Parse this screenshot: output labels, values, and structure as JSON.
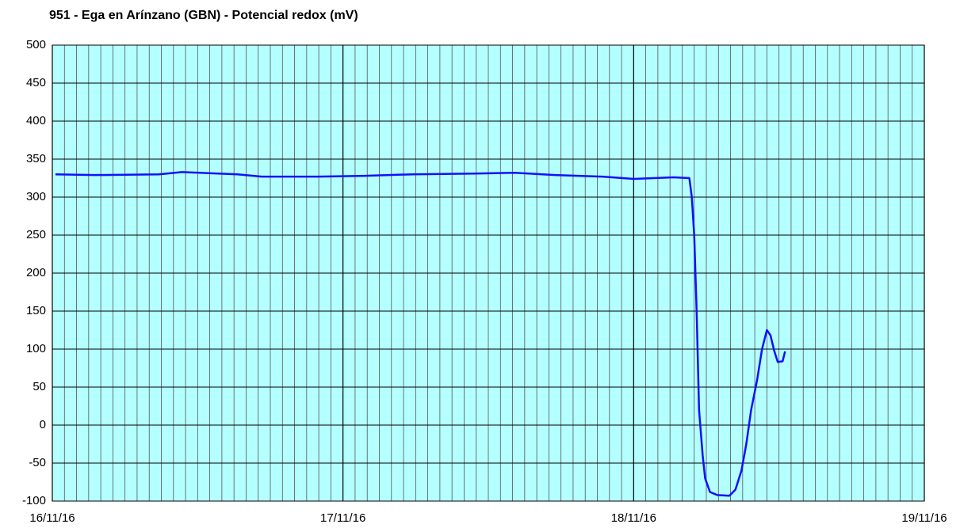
{
  "chart_data": {
    "type": "line",
    "title": "951 - Ega en Arínzano (GBN) - Potencial redox (mV)",
    "x": [
      0.26,
      3.5,
      8.8,
      10.7,
      15.3,
      17.3,
      21.9,
      25.8,
      29.7,
      34.9,
      38.2,
      41.5,
      45.4,
      48.0,
      51.3,
      52.6,
      52.8,
      53.0,
      53.2,
      53.4,
      53.7,
      53.9,
      54.3,
      54.9,
      55.9,
      56.4,
      56.9,
      57.3,
      57.7,
      58.2,
      58.6,
      59.0,
      59.3,
      59.6,
      59.9,
      60.3,
      60.5
    ],
    "series": [
      {
        "name": "Potencial redox",
        "color": "#1010ff",
        "values": [
          330,
          329,
          330,
          333,
          330,
          327,
          327,
          328,
          330,
          331,
          332,
          329,
          327,
          324,
          326,
          325,
          300,
          250,
          150,
          20,
          -40,
          -70,
          -88,
          -92,
          -93,
          -85,
          -60,
          -25,
          20,
          60,
          100,
          125,
          118,
          98,
          83,
          84,
          97
        ]
      }
    ],
    "xlim": [
      0,
      72
    ],
    "xticks": [
      {
        "value": 0,
        "label": "16/11/16"
      },
      {
        "value": 24,
        "label": "17/11/16"
      },
      {
        "value": 48,
        "label": "18/11/16"
      },
      {
        "value": 72,
        "label": "19/11/16"
      }
    ],
    "minor_xticks": [
      1,
      2,
      3,
      4,
      5,
      6,
      7,
      8,
      9,
      10,
      11,
      12,
      13,
      14,
      15,
      16,
      17,
      18,
      19,
      20,
      21,
      22,
      23,
      25,
      26,
      27,
      28,
      29,
      30,
      31,
      32,
      33,
      34,
      35,
      36,
      37,
      38,
      39,
      40,
      41,
      42,
      43,
      44,
      45,
      46,
      47,
      49,
      50,
      51,
      52,
      53,
      54,
      55,
      56,
      57,
      58,
      59,
      60,
      61,
      62,
      63,
      64,
      65,
      66,
      67,
      68,
      69,
      70,
      71
    ],
    "ylim": [
      -100,
      500
    ],
    "yticks": [
      -100,
      -50,
      0,
      50,
      100,
      150,
      200,
      250,
      300,
      350,
      400,
      450,
      500
    ],
    "grid": true,
    "background": "#b4ffff"
  }
}
